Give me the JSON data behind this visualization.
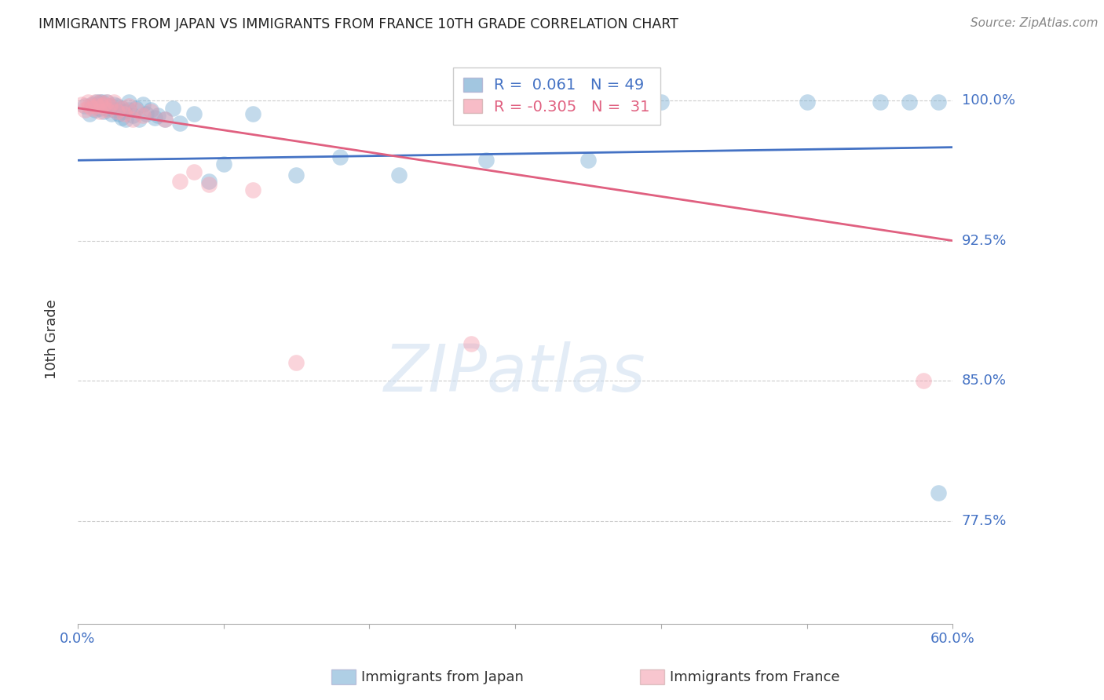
{
  "title": "IMMIGRANTS FROM JAPAN VS IMMIGRANTS FROM FRANCE 10TH GRADE CORRELATION CHART",
  "source": "Source: ZipAtlas.com",
  "ylabel": "10th Grade",
  "y_ticks": [
    77.5,
    85.0,
    92.5,
    100.0
  ],
  "y_tick_labels": [
    "77.5%",
    "85.0%",
    "92.5%",
    "100.0%"
  ],
  "xlim": [
    0.0,
    0.6
  ],
  "ylim": [
    0.72,
    1.025
  ],
  "watermark_text": "ZIPatlas",
  "legend_japan_r": "0.061",
  "legend_japan_n": "49",
  "legend_france_r": "-0.305",
  "legend_france_n": "31",
  "japan_color": "#7bafd4",
  "france_color": "#f4a0b0",
  "japan_line_color": "#4472c4",
  "france_line_color": "#e06080",
  "japan_points_x": [
    0.005,
    0.008,
    0.01,
    0.012,
    0.013,
    0.015,
    0.015,
    0.017,
    0.018,
    0.02,
    0.02,
    0.022,
    0.023,
    0.025,
    0.025,
    0.027,
    0.028,
    0.03,
    0.03,
    0.032,
    0.033,
    0.035,
    0.035,
    0.038,
    0.04,
    0.042,
    0.045,
    0.047,
    0.05,
    0.053,
    0.055,
    0.06,
    0.065,
    0.07,
    0.08,
    0.09,
    0.1,
    0.12,
    0.15,
    0.18,
    0.22,
    0.28,
    0.35,
    0.4,
    0.5,
    0.55,
    0.57,
    0.59,
    0.59
  ],
  "japan_points_y": [
    0.997,
    0.993,
    0.998,
    0.995,
    0.999,
    0.999,
    0.996,
    0.999,
    0.994,
    0.999,
    0.996,
    0.997,
    0.993,
    0.998,
    0.995,
    0.997,
    0.993,
    0.996,
    0.991,
    0.994,
    0.99,
    0.999,
    0.995,
    0.992,
    0.996,
    0.99,
    0.998,
    0.993,
    0.995,
    0.991,
    0.992,
    0.99,
    0.996,
    0.988,
    0.993,
    0.957,
    0.966,
    0.993,
    0.96,
    0.97,
    0.96,
    0.968,
    0.968,
    0.999,
    0.999,
    0.999,
    0.999,
    0.79,
    0.999
  ],
  "france_points_x": [
    0.003,
    0.005,
    0.007,
    0.008,
    0.01,
    0.012,
    0.013,
    0.015,
    0.015,
    0.017,
    0.018,
    0.02,
    0.02,
    0.022,
    0.025,
    0.027,
    0.03,
    0.032,
    0.035,
    0.038,
    0.04,
    0.045,
    0.05,
    0.06,
    0.07,
    0.08,
    0.09,
    0.12,
    0.15,
    0.27,
    0.58
  ],
  "france_points_y": [
    0.998,
    0.995,
    0.999,
    0.997,
    0.996,
    0.999,
    0.997,
    0.999,
    0.994,
    0.997,
    0.998,
    0.999,
    0.995,
    0.997,
    0.999,
    0.994,
    0.996,
    0.993,
    0.997,
    0.99,
    0.995,
    0.992,
    0.994,
    0.99,
    0.957,
    0.962,
    0.955,
    0.952,
    0.86,
    0.87,
    0.85
  ],
  "japan_line_x0": 0.0,
  "japan_line_x1": 0.6,
  "japan_line_y0": 0.968,
  "japan_line_y1": 0.975,
  "france_line_x0": 0.0,
  "france_line_x1": 0.6,
  "france_line_y0": 0.996,
  "france_line_y1": 0.925,
  "bg_color": "#ffffff",
  "grid_color": "#cccccc",
  "tick_label_color": "#4472c4",
  "title_color": "#222222"
}
